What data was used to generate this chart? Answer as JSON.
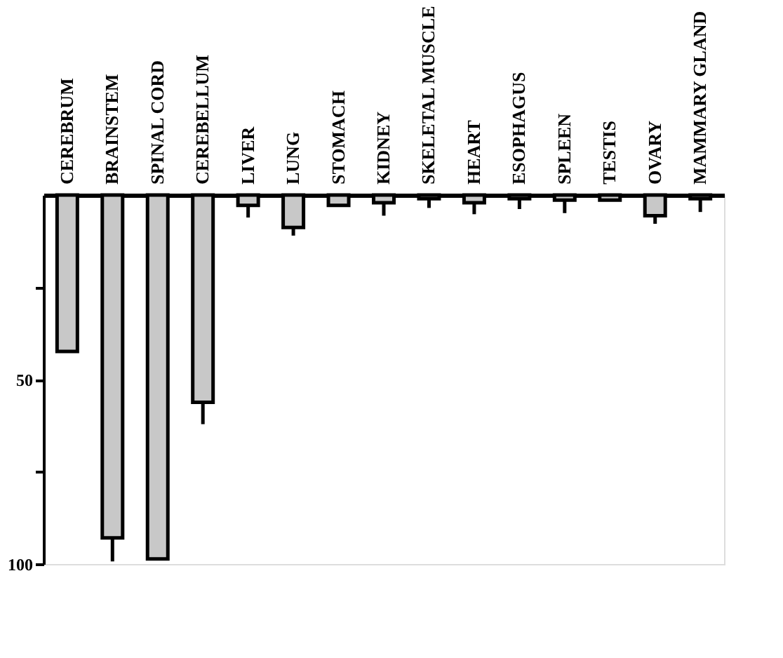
{
  "chart_data": {
    "type": "bar",
    "categories": [
      "CEREBRUM",
      "BRAINSTEM",
      "SPINAL CORD",
      "CEREBELLUM",
      "LIVER",
      "LUNG",
      "STOMACH",
      "KIDNEY",
      "SKELETAL MUSCLE",
      "HEART",
      "ESOPHAGUS",
      "SPLEEN",
      "TESTIS",
      "OVARY",
      "MAMMARY GLAND"
    ],
    "values": [
      42.4,
      92.9,
      98.6,
      56.2,
      2.8,
      8.8,
      2.8,
      2.1,
      1,
      2.1,
      1,
      1.4,
      1.4,
      5.6,
      1
    ],
    "errors": [
      null,
      [
        92.9,
        99.3
      ],
      null,
      [
        56.2,
        62.1
      ],
      [
        2.8,
        6.1
      ],
      [
        8.8,
        11
      ],
      null,
      [
        2.1,
        5.6
      ],
      [
        1,
        3.5
      ],
      [
        2.1,
        5.2
      ],
      [
        1,
        3.8
      ],
      [
        1.4,
        4.9
      ],
      null,
      [
        5.6,
        7.8
      ],
      [
        1,
        4.6
      ]
    ],
    "color": "#c8c8c8",
    "ylim": [
      100,
      0
    ],
    "yticks": [
      {
        "value": 25,
        "label": null
      },
      50,
      {
        "value": 75,
        "label": null
      },
      100
    ],
    "grid": false
  }
}
